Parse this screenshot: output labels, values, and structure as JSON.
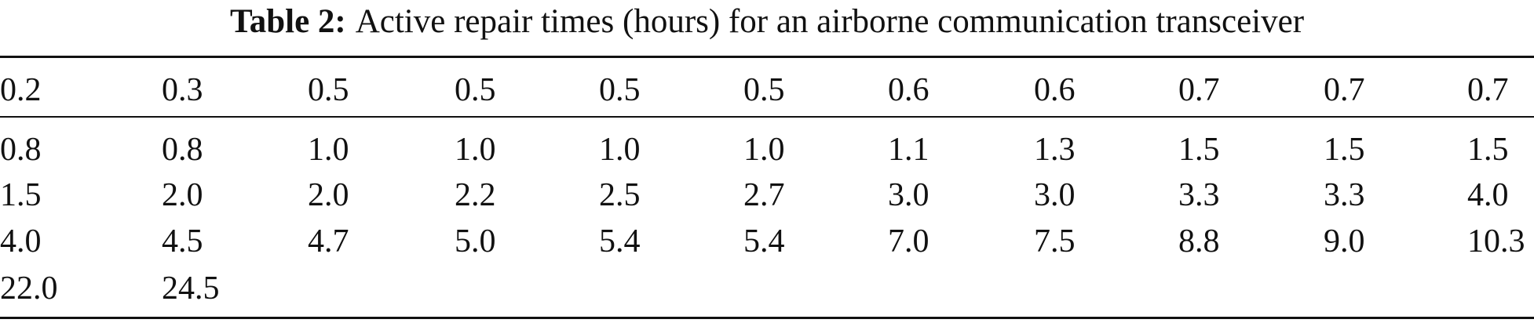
{
  "caption": {
    "label": "Table 2:",
    "text": "Active repair times (hours) for an airborne communication transceiver"
  },
  "table": {
    "header": [
      "0.2",
      "0.3",
      "0.5",
      "0.5",
      "0.5",
      "0.5",
      "0.6",
      "0.6",
      "0.7",
      "0.7",
      "0.7"
    ],
    "rows": [
      [
        "0.8",
        "0.8",
        "1.0",
        "1.0",
        "1.0",
        "1.0",
        "1.1",
        "1.3",
        "1.5",
        "1.5",
        "1.5"
      ],
      [
        "1.5",
        "2.0",
        "2.0",
        "2.2",
        "2.5",
        "2.7",
        "3.0",
        "3.0",
        "3.3",
        "3.3",
        "4.0"
      ],
      [
        "4.0",
        "4.5",
        "4.7",
        "5.0",
        "5.4",
        "5.4",
        "7.0",
        "7.5",
        "8.8",
        "9.0",
        "10.3"
      ],
      [
        "22.0",
        "24.5"
      ]
    ]
  }
}
